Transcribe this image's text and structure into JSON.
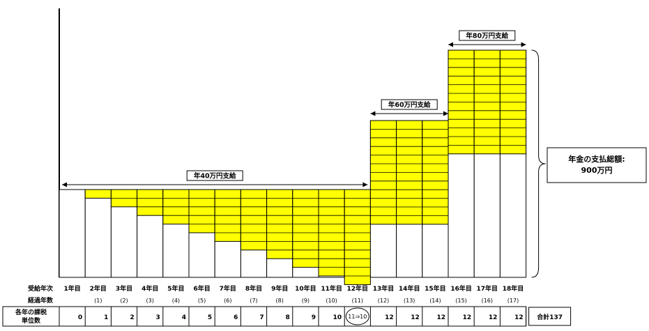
{
  "diagram": {
    "row_labels": {
      "year_order": "受給年次",
      "elapsed": "経過年数",
      "units": "各年の課税\n単位数"
    },
    "years": [
      {
        "year_label": "1年目",
        "elapsed": "",
        "units": "0",
        "taxable": 0,
        "annual": 40
      },
      {
        "year_label": "2年目",
        "elapsed": "(1)",
        "units": "1",
        "taxable": 1,
        "annual": 40
      },
      {
        "year_label": "3年目",
        "elapsed": "(2)",
        "units": "2",
        "taxable": 2,
        "annual": 40
      },
      {
        "year_label": "4年目",
        "elapsed": "(3)",
        "units": "3",
        "taxable": 3,
        "annual": 40
      },
      {
        "year_label": "5年目",
        "elapsed": "(4)",
        "units": "4",
        "taxable": 4,
        "annual": 40
      },
      {
        "year_label": "6年目",
        "elapsed": "(5)",
        "units": "5",
        "taxable": 5,
        "annual": 40
      },
      {
        "year_label": "7年目",
        "elapsed": "(6)",
        "units": "6",
        "taxable": 6,
        "annual": 40
      },
      {
        "year_label": "8年目",
        "elapsed": "(7)",
        "units": "7",
        "taxable": 7,
        "annual": 40
      },
      {
        "year_label": "9年目",
        "elapsed": "(8)",
        "units": "8",
        "taxable": 8,
        "annual": 40
      },
      {
        "year_label": "10年目",
        "elapsed": "(9)",
        "units": "9",
        "taxable": 9,
        "annual": 40
      },
      {
        "year_label": "11年目",
        "elapsed": "(10)",
        "units": "10",
        "taxable": 10,
        "annual": 40
      },
      {
        "year_label": "12年目",
        "elapsed": "(11)",
        "units": "11⇒10",
        "taxable": 11,
        "annual": 40
      },
      {
        "year_label": "13年目",
        "elapsed": "(12)",
        "units": "12",
        "taxable": 12,
        "annual": 60
      },
      {
        "year_label": "14年目",
        "elapsed": "(13)",
        "units": "12",
        "taxable": 12,
        "annual": 60
      },
      {
        "year_label": "15年目",
        "elapsed": "(14)",
        "units": "12",
        "taxable": 12,
        "annual": 60
      },
      {
        "year_label": "16年目",
        "elapsed": "(15)",
        "units": "12",
        "taxable": 12,
        "annual": 80
      },
      {
        "year_label": "17年目",
        "elapsed": "(16)",
        "units": "12",
        "taxable": 12,
        "annual": 80
      },
      {
        "year_label": "18年目",
        "elapsed": "(17)",
        "units": "12",
        "taxable": 12,
        "annual": 80
      }
    ],
    "total_label": "合計137",
    "periods": [
      {
        "label": "年40万円支給",
        "from_year": 1,
        "to_year": 12
      },
      {
        "label": "年60万円支給",
        "from_year": 13,
        "to_year": 15
      },
      {
        "label": "年80万円支給",
        "from_year": 16,
        "to_year": 18
      }
    ],
    "callout": {
      "line1": "年金の支払総額:",
      "line2": "900万円"
    },
    "colors": {
      "taxable_fill": "#ffff00",
      "base_fill": "#ffffff",
      "line": "#000000"
    }
  }
}
